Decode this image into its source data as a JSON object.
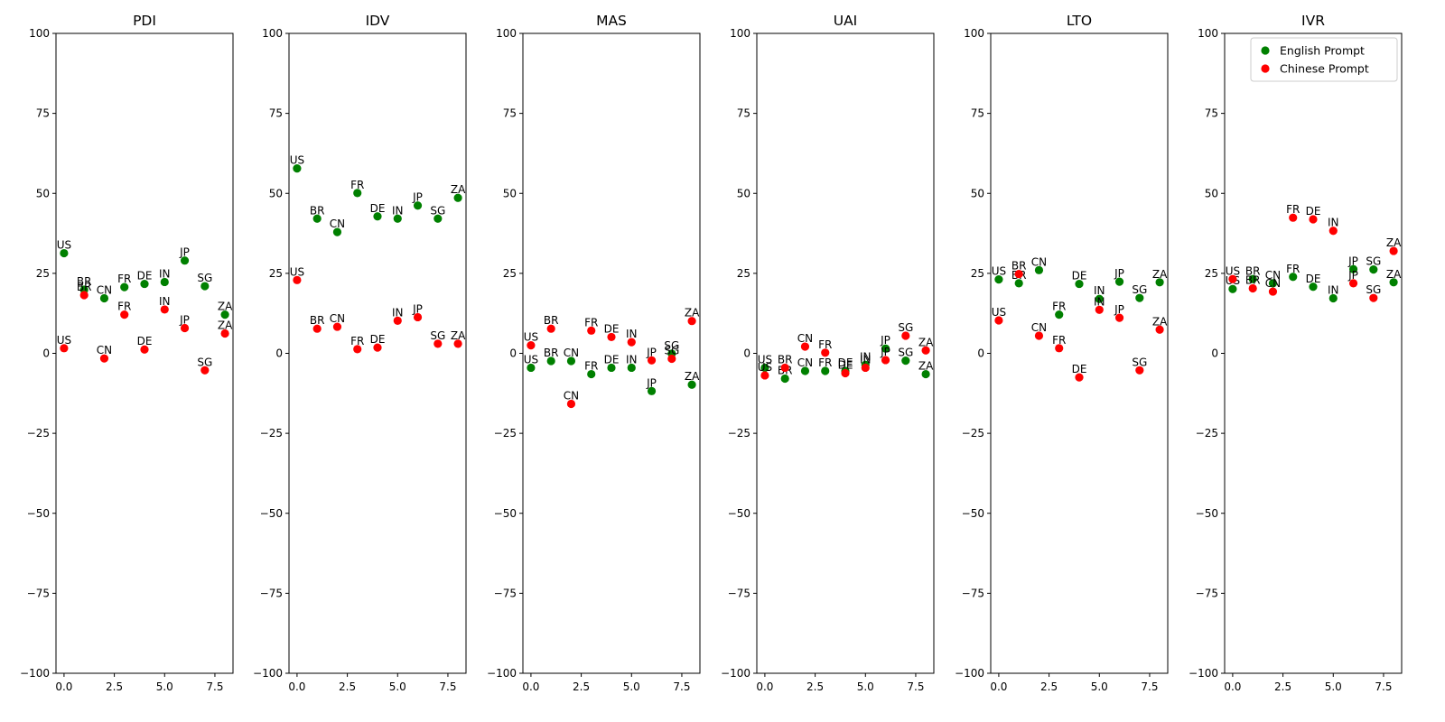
{
  "chart_data": {
    "type": "scatter",
    "countries": [
      "US",
      "BR",
      "CN",
      "FR",
      "DE",
      "IN",
      "JP",
      "SG",
      "ZA"
    ],
    "x": [
      0,
      1,
      2,
      3,
      4,
      5,
      6,
      7,
      8
    ],
    "xticks": [
      "0.0",
      "2.5",
      "5.0",
      "7.5"
    ],
    "yticks": [
      "100",
      "75",
      "50",
      "25",
      "0",
      "−25",
      "−50",
      "−75",
      "−100"
    ],
    "ylim": [
      -100,
      100
    ],
    "xlim": [
      -0.4,
      8.4
    ],
    "legend": {
      "position": "top-right",
      "entries": [
        "English Prompt",
        "Chinese Prompt"
      ]
    },
    "colors": {
      "english": "#008000",
      "chinese": "#ff0000"
    },
    "panels": [
      {
        "title": "PDI",
        "series": [
          {
            "name": "English Prompt",
            "values": [
              31.3,
              19.9,
              17.2,
              20.7,
              21.7,
              22.3,
              29.0,
              21.0,
              12.1
            ]
          },
          {
            "name": "Chinese Prompt",
            "values": [
              1.6,
              18.2,
              -1.6,
              12.1,
              1.2,
              13.7,
              7.9,
              -5.3,
              6.2
            ]
          }
        ]
      },
      {
        "title": "IDV",
        "series": [
          {
            "name": "English Prompt",
            "values": [
              57.8,
              42.1,
              37.9,
              50.1,
              42.8,
              42.1,
              46.2,
              42.1,
              48.6
            ]
          },
          {
            "name": "Chinese Prompt",
            "values": [
              22.9,
              7.7,
              8.3,
              1.3,
              1.8,
              10.2,
              11.3,
              3.0,
              3.0
            ]
          }
        ]
      },
      {
        "title": "MAS",
        "series": [
          {
            "name": "English Prompt",
            "values": [
              -4.5,
              -2.4,
              -2.4,
              -6.5,
              -4.5,
              -4.5,
              -11.8,
              -0.1,
              -9.8
            ]
          },
          {
            "name": "Chinese Prompt",
            "values": [
              2.5,
              7.7,
              -15.8,
              7.1,
              5.1,
              3.5,
              -2.2,
              -1.7,
              10.1
            ]
          }
        ]
      },
      {
        "title": "UAI",
        "series": [
          {
            "name": "English Prompt",
            "values": [
              -4.5,
              -7.9,
              -5.5,
              -5.5,
              -5.5,
              -3.6,
              1.5,
              -2.3,
              -6.5
            ]
          },
          {
            "name": "Chinese Prompt",
            "values": [
              -6.9,
              -4.5,
              2.1,
              0.2,
              -6.2,
              -4.5,
              -2.1,
              5.5,
              0.9
            ]
          }
        ]
      },
      {
        "title": "LTO",
        "series": [
          {
            "name": "English Prompt",
            "values": [
              23.1,
              21.9,
              26.0,
              12.1,
              21.7,
              17.0,
              22.4,
              17.3,
              22.2
            ]
          },
          {
            "name": "Chinese Prompt",
            "values": [
              10.3,
              24.8,
              5.5,
              1.6,
              -7.5,
              13.6,
              11.1,
              -5.3,
              7.4
            ]
          }
        ]
      },
      {
        "title": "IVR",
        "series": [
          {
            "name": "English Prompt",
            "values": [
              20.1,
              23.2,
              21.9,
              23.9,
              20.8,
              17.2,
              26.3,
              26.2,
              22.2
            ]
          },
          {
            "name": "Chinese Prompt",
            "values": [
              23.2,
              20.3,
              19.3,
              42.4,
              41.9,
              38.3,
              21.9,
              17.3,
              32.0
            ]
          }
        ]
      }
    ]
  }
}
